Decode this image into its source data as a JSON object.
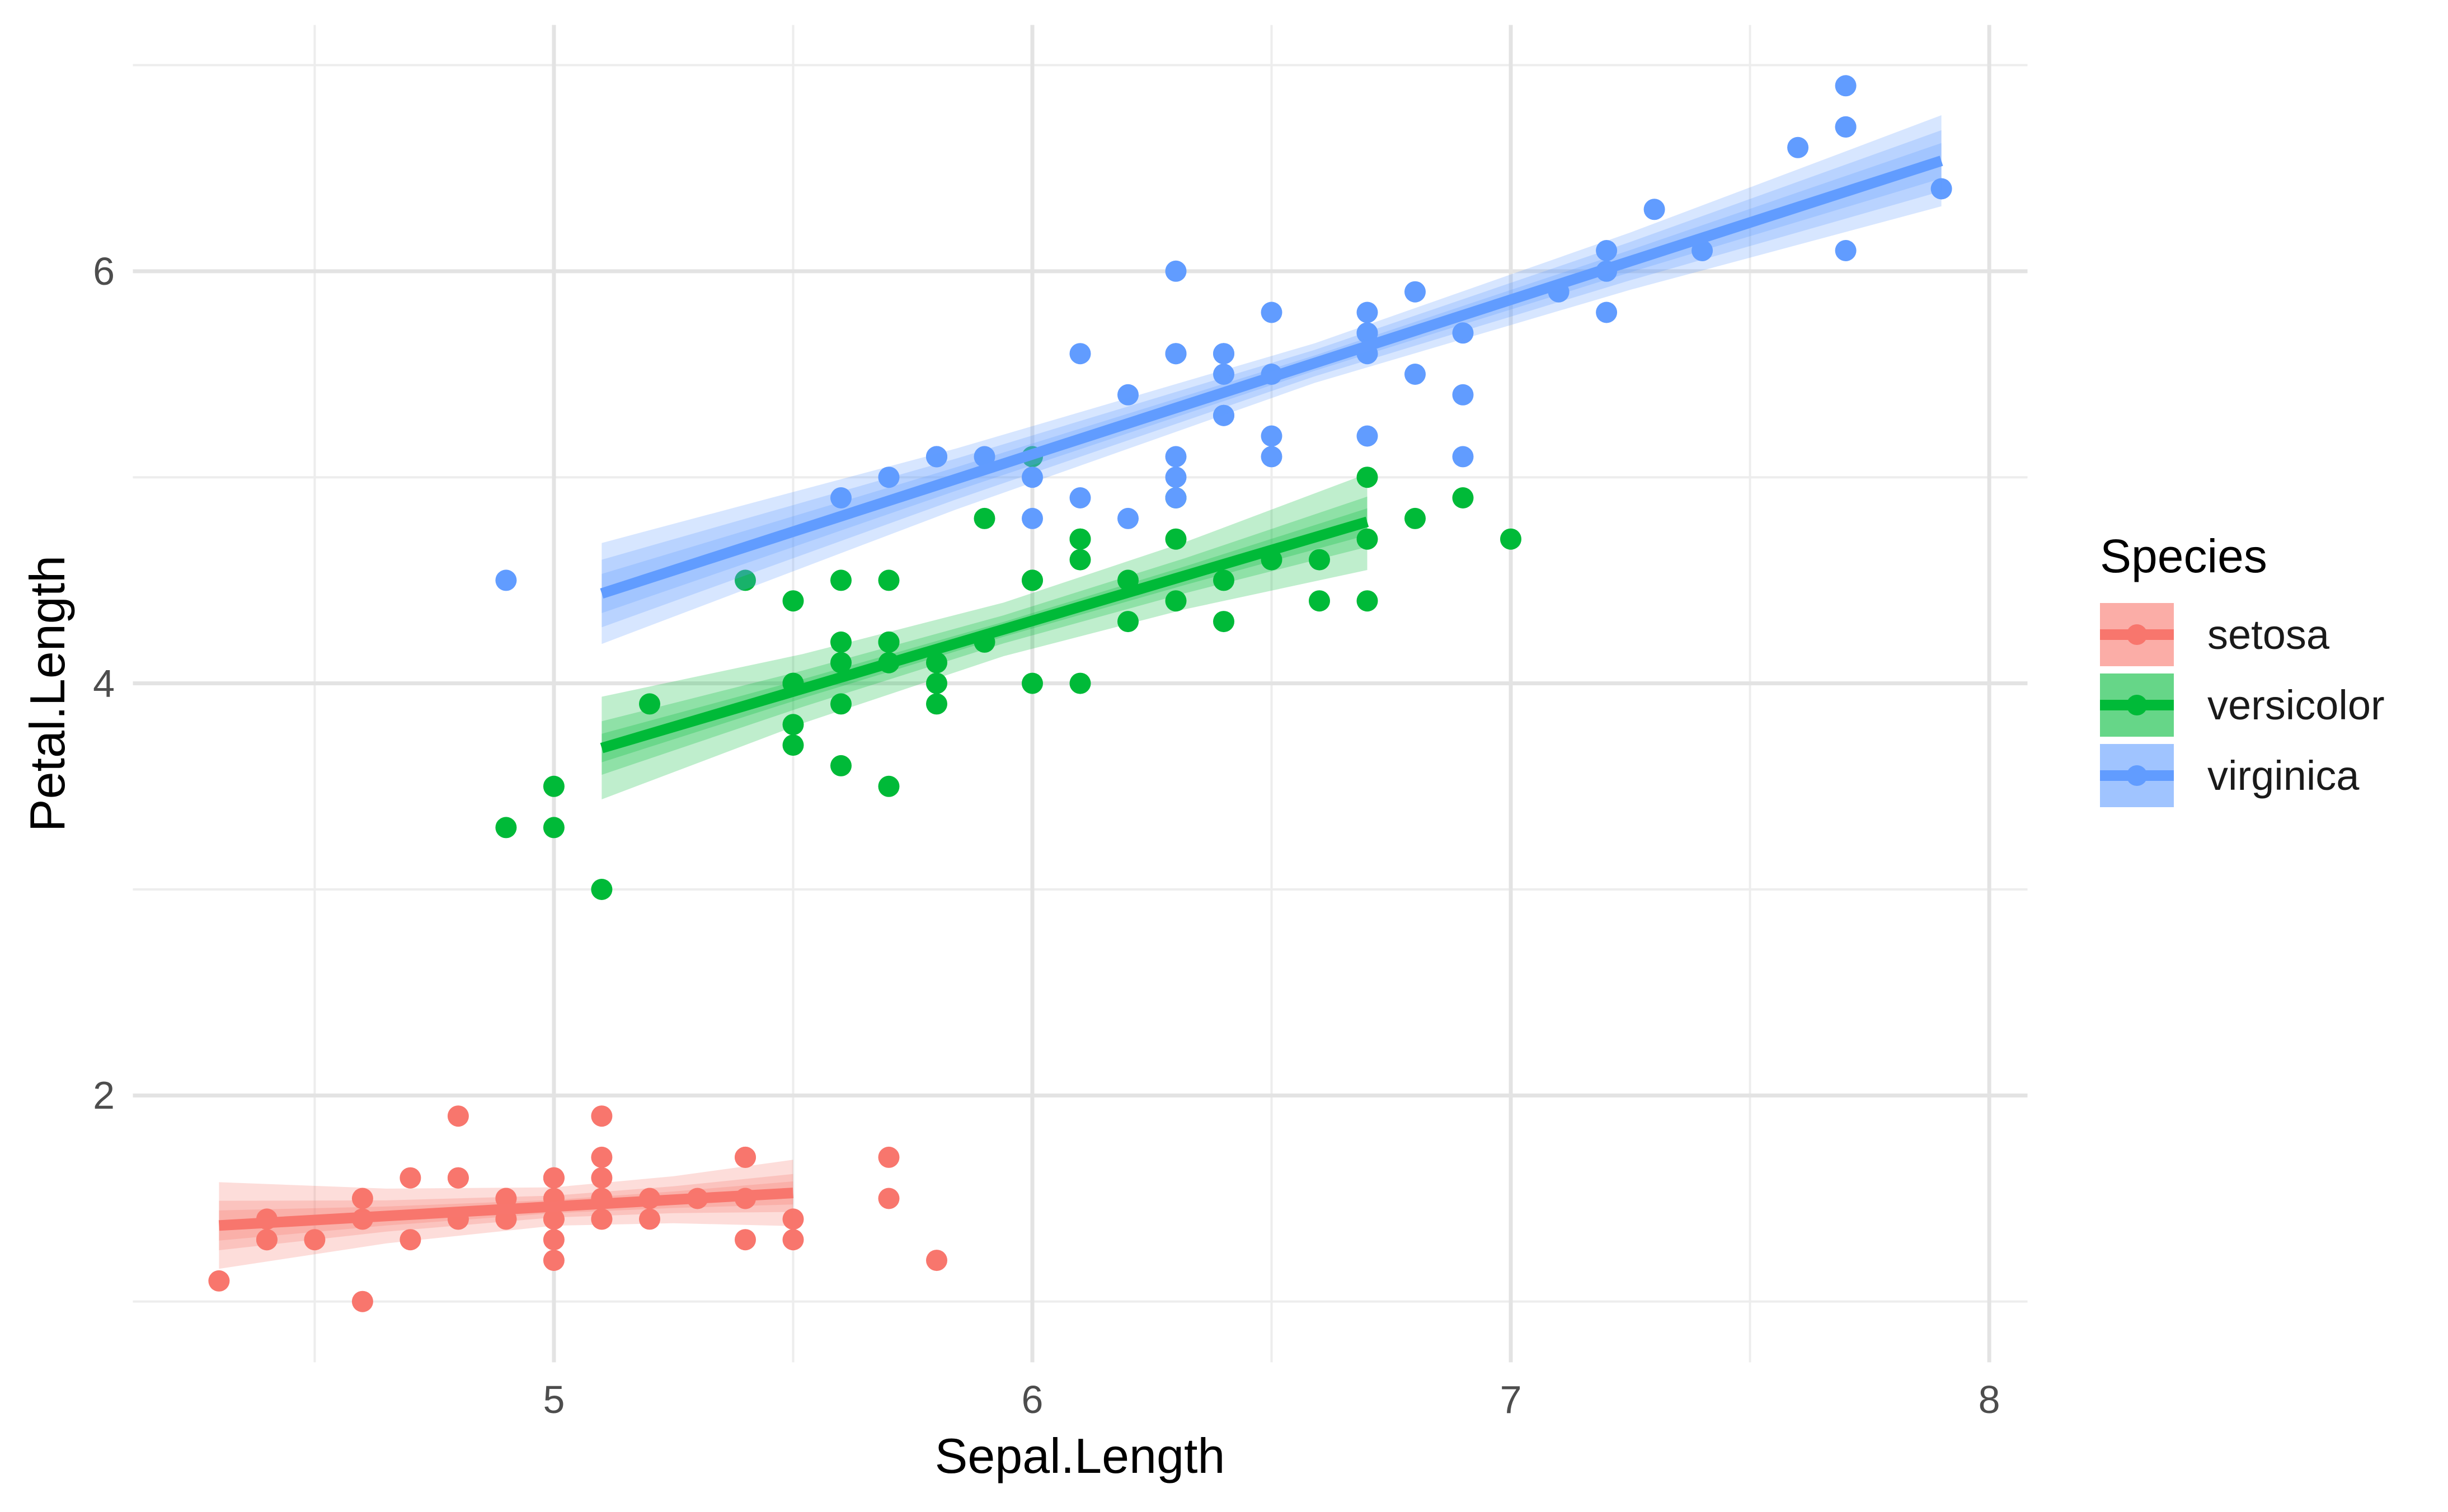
{
  "chart_data": {
    "type": "scatter",
    "title": "",
    "xlabel": "Sepal.Length",
    "ylabel": "Petal.Length",
    "axes": {
      "xlim": [
        4.12,
        8.08
      ],
      "ylim": [
        0.705,
        7.195
      ],
      "x_major_ticks": [
        {
          "value": 5,
          "label": "5"
        },
        {
          "value": 6,
          "label": "6"
        },
        {
          "value": 7,
          "label": "7"
        },
        {
          "value": 8,
          "label": "8"
        }
      ],
      "y_major_ticks": [
        {
          "value": 2,
          "label": "2"
        },
        {
          "value": 4,
          "label": "4"
        },
        {
          "value": 6,
          "label": "6"
        }
      ],
      "x_minor_ticks": [
        4.5,
        5.5,
        6.5,
        7.5
      ],
      "y_minor_ticks": [
        1,
        3,
        5,
        7
      ],
      "grid": true
    },
    "legend": {
      "title": "Species",
      "position": "right",
      "entries": [
        {
          "label": "setosa",
          "color": "#F8766D"
        },
        {
          "label": "versicolor",
          "color": "#00BA38"
        },
        {
          "label": "virginica",
          "color": "#619CFF"
        }
      ]
    },
    "style": {
      "major_grid_color": "#E3E3E3",
      "minor_grid_color": "#EDEDED",
      "tick_label_color": "#4d4d4d",
      "point_radius": 19,
      "line_width": 19,
      "band_opacity": 0.25,
      "key_fill_opacity": 0.6
    },
    "series": [
      {
        "name": "setosa",
        "color": "#F8766D",
        "points": [
          [
            5.1,
            1.4
          ],
          [
            4.9,
            1.4
          ],
          [
            4.7,
            1.3
          ],
          [
            4.6,
            1.5
          ],
          [
            5.0,
            1.4
          ],
          [
            5.4,
            1.7
          ],
          [
            4.6,
            1.4
          ],
          [
            5.0,
            1.5
          ],
          [
            4.4,
            1.4
          ],
          [
            4.9,
            1.5
          ],
          [
            5.4,
            1.5
          ],
          [
            4.8,
            1.6
          ],
          [
            4.8,
            1.4
          ],
          [
            4.3,
            1.1
          ],
          [
            5.8,
            1.2
          ],
          [
            5.7,
            1.5
          ],
          [
            5.4,
            1.3
          ],
          [
            5.1,
            1.4
          ],
          [
            5.7,
            1.7
          ],
          [
            5.1,
            1.5
          ],
          [
            5.4,
            1.7
          ],
          [
            5.1,
            1.5
          ],
          [
            4.6,
            1.0
          ],
          [
            5.1,
            1.7
          ],
          [
            4.8,
            1.9
          ],
          [
            5.0,
            1.6
          ],
          [
            5.0,
            1.6
          ],
          [
            5.2,
            1.5
          ],
          [
            5.2,
            1.4
          ],
          [
            4.7,
            1.6
          ],
          [
            4.8,
            1.6
          ],
          [
            5.4,
            1.5
          ],
          [
            5.2,
            1.5
          ],
          [
            5.5,
            1.4
          ],
          [
            4.9,
            1.5
          ],
          [
            5.0,
            1.2
          ],
          [
            5.5,
            1.3
          ],
          [
            4.9,
            1.4
          ],
          [
            4.4,
            1.3
          ],
          [
            5.1,
            1.5
          ],
          [
            5.0,
            1.3
          ],
          [
            4.5,
            1.3
          ],
          [
            4.4,
            1.3
          ],
          [
            5.0,
            1.6
          ],
          [
            5.1,
            1.9
          ],
          [
            4.8,
            1.4
          ],
          [
            5.1,
            1.6
          ],
          [
            4.6,
            1.4
          ],
          [
            5.3,
            1.5
          ],
          [
            5.0,
            1.4
          ]
        ]
      },
      {
        "name": "versicolor",
        "color": "#00BA38",
        "points": [
          [
            7.0,
            4.7
          ],
          [
            6.4,
            4.5
          ],
          [
            6.9,
            4.9
          ],
          [
            5.5,
            4.0
          ],
          [
            6.5,
            4.6
          ],
          [
            5.7,
            4.5
          ],
          [
            6.3,
            4.7
          ],
          [
            4.9,
            3.3
          ],
          [
            6.6,
            4.6
          ],
          [
            5.2,
            3.9
          ],
          [
            5.0,
            3.5
          ],
          [
            5.9,
            4.2
          ],
          [
            6.0,
            4.0
          ],
          [
            6.1,
            4.7
          ],
          [
            5.6,
            3.6
          ],
          [
            6.7,
            4.4
          ],
          [
            5.6,
            4.5
          ],
          [
            5.8,
            4.1
          ],
          [
            6.2,
            4.5
          ],
          [
            5.6,
            3.9
          ],
          [
            5.9,
            4.8
          ],
          [
            6.1,
            4.0
          ],
          [
            6.3,
            4.9
          ],
          [
            6.1,
            4.7
          ],
          [
            6.4,
            4.3
          ],
          [
            6.6,
            4.4
          ],
          [
            6.8,
            4.8
          ],
          [
            6.7,
            5.0
          ],
          [
            6.0,
            4.5
          ],
          [
            5.7,
            3.5
          ],
          [
            5.5,
            3.8
          ],
          [
            5.5,
            3.7
          ],
          [
            5.8,
            3.9
          ],
          [
            6.0,
            5.1
          ],
          [
            5.4,
            4.5
          ],
          [
            6.0,
            4.5
          ],
          [
            6.7,
            4.7
          ],
          [
            6.3,
            4.4
          ],
          [
            5.6,
            4.1
          ],
          [
            5.5,
            4.0
          ],
          [
            5.5,
            4.4
          ],
          [
            6.1,
            4.6
          ],
          [
            5.8,
            4.0
          ],
          [
            5.0,
            3.3
          ],
          [
            5.6,
            4.2
          ],
          [
            5.7,
            4.2
          ],
          [
            5.7,
            4.2
          ],
          [
            6.2,
            4.3
          ],
          [
            5.1,
            3.0
          ],
          [
            5.7,
            4.1
          ]
        ]
      },
      {
        "name": "virginica",
        "color": "#619CFF",
        "points": [
          [
            6.3,
            6.0
          ],
          [
            5.8,
            5.1
          ],
          [
            7.1,
            5.9
          ],
          [
            6.3,
            5.6
          ],
          [
            6.5,
            5.8
          ],
          [
            7.6,
            6.6
          ],
          [
            4.9,
            4.5
          ],
          [
            7.3,
            6.3
          ],
          [
            6.7,
            5.8
          ],
          [
            7.2,
            6.1
          ],
          [
            6.5,
            5.1
          ],
          [
            6.4,
            5.3
          ],
          [
            6.8,
            5.5
          ],
          [
            5.7,
            5.0
          ],
          [
            5.8,
            5.1
          ],
          [
            6.4,
            5.3
          ],
          [
            6.5,
            5.5
          ],
          [
            7.7,
            6.7
          ],
          [
            7.7,
            6.9
          ],
          [
            6.0,
            5.0
          ],
          [
            6.9,
            5.7
          ],
          [
            5.6,
            4.9
          ],
          [
            7.7,
            6.7
          ],
          [
            6.3,
            4.9
          ],
          [
            6.7,
            5.7
          ],
          [
            7.2,
            6.0
          ],
          [
            6.2,
            4.8
          ],
          [
            6.1,
            4.9
          ],
          [
            6.4,
            5.6
          ],
          [
            7.2,
            5.8
          ],
          [
            7.4,
            6.1
          ],
          [
            7.9,
            6.4
          ],
          [
            6.4,
            5.6
          ],
          [
            6.3,
            5.1
          ],
          [
            6.1,
            5.6
          ],
          [
            7.7,
            6.1
          ],
          [
            6.3,
            5.6
          ],
          [
            6.4,
            5.5
          ],
          [
            6.0,
            4.8
          ],
          [
            6.9,
            5.4
          ],
          [
            6.7,
            5.6
          ],
          [
            6.9,
            5.1
          ],
          [
            5.8,
            5.1
          ],
          [
            6.8,
            5.9
          ],
          [
            6.7,
            5.7
          ],
          [
            6.7,
            5.2
          ],
          [
            6.3,
            5.0
          ],
          [
            6.5,
            5.2
          ],
          [
            6.2,
            5.4
          ],
          [
            5.9,
            5.1
          ]
        ]
      }
    ],
    "smooths": [
      {
        "name": "setosa",
        "color": "#F8766D",
        "method": "lm",
        "x": [
          4.3,
          4.65,
          5.0,
          5.25,
          5.5
        ],
        "fit": [
          1.369,
          1.415,
          1.461,
          1.494,
          1.527
        ],
        "bands": {
          "inner": [
            0.073,
            0.046,
            0.032,
            0.04,
            0.056
          ],
          "mid": [
            0.12,
            0.076,
            0.053,
            0.065,
            0.092
          ],
          "outer": [
            0.21,
            0.133,
            0.093,
            0.114,
            0.161
          ]
        }
      },
      {
        "name": "versicolor",
        "color": "#00BA38",
        "method": "lm",
        "x": [
          5.1,
          5.52,
          5.94,
          6.32,
          6.7
        ],
        "fit": [
          3.686,
          3.974,
          4.262,
          4.523,
          4.784
        ],
        "bands": {
          "inner": [
            0.069,
            0.046,
            0.036,
            0.045,
            0.065
          ],
          "mid": [
            0.13,
            0.088,
            0.068,
            0.085,
            0.122
          ],
          "outer": [
            0.249,
            0.168,
            0.13,
            0.163,
            0.234
          ]
        }
      },
      {
        "name": "virginica",
        "color": "#619CFF",
        "method": "lm",
        "x": [
          5.1,
          5.84,
          6.59,
          7.25,
          7.9
        ],
        "fit": [
          4.436,
          4.991,
          5.554,
          6.049,
          6.536
        ],
        "bands": {
          "inner": [
            0.095,
            0.057,
            0.037,
            0.054,
            0.086
          ],
          "mid": [
            0.164,
            0.099,
            0.064,
            0.093,
            0.148
          ],
          "outer": [
            0.245,
            0.148,
            0.096,
            0.139,
            0.221
          ]
        }
      }
    ]
  }
}
